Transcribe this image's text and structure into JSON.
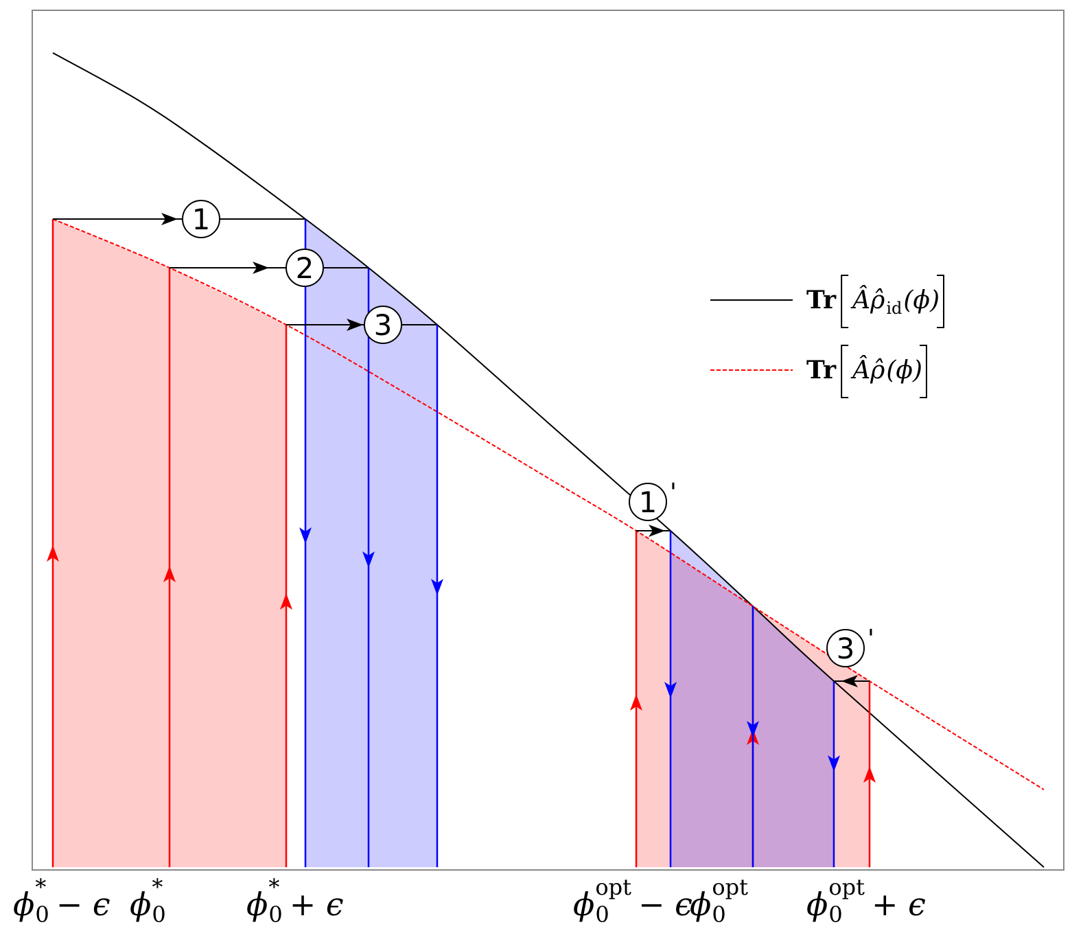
{
  "markers": [
    {
      "label": "1"
    },
    {
      "label": "2"
    },
    {
      "label": "3"
    },
    {
      "label": "1",
      "prime": "'"
    },
    {
      "label": "3",
      "prime": "'"
    }
  ],
  "legend": [
    {
      "operator": "Tr",
      "body": "Âρ̂",
      "subscript": "id",
      "argument": "(ϕ)"
    },
    {
      "operator": "Tr",
      "body": "Âρ̂",
      "argument": "(ϕ)"
    }
  ],
  "x_labels": [
    {
      "symbol": "ϕ",
      "sub": "0",
      "sup": "*",
      "suffix": "− ϵ"
    },
    {
      "symbol": "ϕ",
      "sub": "0",
      "sup": "*"
    },
    {
      "symbol": "ϕ",
      "sub": "0",
      "sup": "*",
      "suffix": "+ ϵ"
    },
    {
      "symbol": "ϕ",
      "sub": "0",
      "sup": "opt",
      "suffix": "− ϵ"
    },
    {
      "symbol": "ϕ",
      "sub": "0",
      "sup": "opt"
    },
    {
      "symbol": "ϕ",
      "sub": "0",
      "sup": "opt",
      "suffix": "+ ϵ"
    }
  ]
}
